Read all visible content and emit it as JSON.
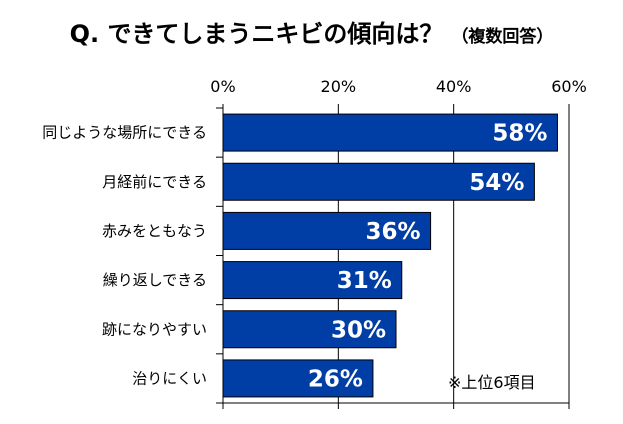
{
  "chart_data": {
    "type": "bar",
    "orientation": "horizontal",
    "title": "Q. できてしまうニキビの傾向は？",
    "subtitle": "（複数回答）",
    "categories": [
      "同じような場所にできる",
      "月経前にできる",
      "赤みをともなう",
      "繰り返しできる",
      "跡になりやすい",
      "治りにくい"
    ],
    "values": [
      58,
      54,
      36,
      31,
      30,
      26
    ],
    "data_labels": [
      "58%",
      "54%",
      "36%",
      "31%",
      "30%",
      "26%"
    ],
    "xlim": [
      0,
      60
    ],
    "x_ticks": [
      0,
      20,
      40,
      60
    ],
    "x_tick_labels": [
      "0%",
      "20%",
      "40%",
      "60%"
    ],
    "x_axis_position": "top",
    "grid": true,
    "annotation": "※上位6項目",
    "colors": {
      "bar": "#003DA5",
      "bar_border": "#000000",
      "label": "#FFFFFF"
    }
  }
}
